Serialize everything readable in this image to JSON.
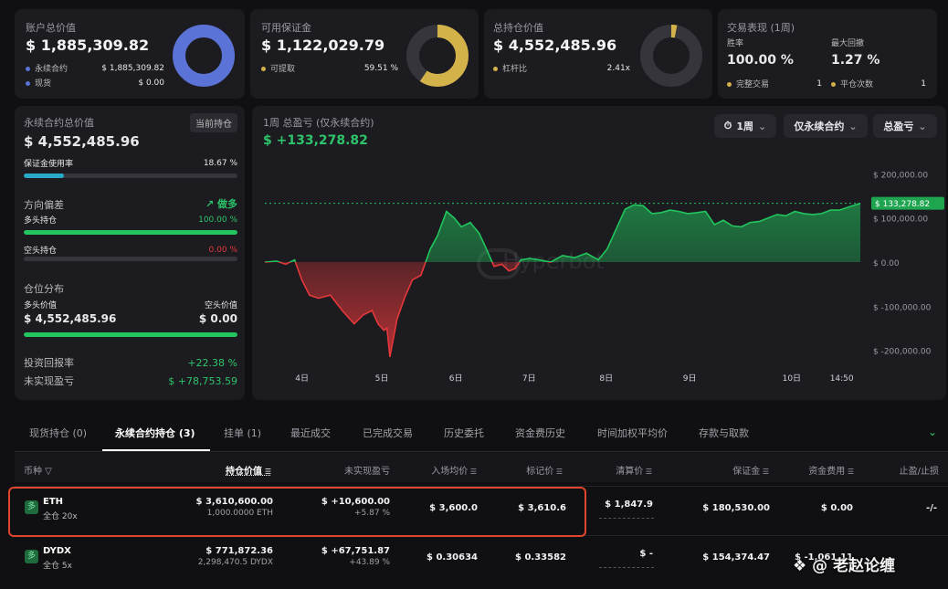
{
  "summary": {
    "account": {
      "title": "账户总价值",
      "value": "$ 1,885,309.82",
      "rows": [
        {
          "label": "永续合约",
          "value": "$ 1,885,309.82",
          "color": "#5b73d6"
        },
        {
          "label": "现货",
          "value": "$ 0.00",
          "color": "#5b73d6"
        }
      ],
      "donut_fraction": 1.0,
      "donut_color": "#5b73d6"
    },
    "margin": {
      "title": "可用保证金",
      "value": "$ 1,122,029.79",
      "rows": [
        {
          "label": "可提取",
          "value": "59.51 %",
          "color": "#d4b24a"
        }
      ],
      "donut_fraction": 0.5951,
      "donut_color": "#d4b24a"
    },
    "position": {
      "title": "总持仓价值",
      "value": "$ 4,552,485.96",
      "rows": [
        {
          "label": "杠杆比",
          "value": "2.41x",
          "color": "#d4b24a"
        }
      ],
      "donut_fraction": 0.03,
      "donut_color": "#d4b24a"
    },
    "performance": {
      "title": "交易表现 (1周)",
      "win_label": "胜率",
      "win_value": "100.00 %",
      "dd_label": "最大回撤",
      "dd_value": "1.27 %",
      "rows": [
        {
          "label": "完整交易",
          "value": "1",
          "color": "#d4b24a"
        },
        {
          "label": "平仓次数",
          "value": "1",
          "color": "#d4b24a"
        }
      ]
    }
  },
  "perp": {
    "title": "永续合约总价值",
    "badge": "当前持仓",
    "value": "$ 4,552,485.96",
    "margin_usage_label": "保证金使用率",
    "margin_usage_value": "18.67 %",
    "margin_usage": 0.1867,
    "bias_label": "方向偏差",
    "bias_value": "做多",
    "long_label": "多头持仓",
    "long_value": "100.00 %",
    "long": 1.0,
    "short_label": "空头持仓",
    "short_value": "0.00 %",
    "short": 0.0,
    "dist_label": "仓位分布",
    "long_val_label": "多头价值",
    "short_val_label": "空头价值",
    "long_val": "$ 4,552,485.96",
    "short_val": "$ 0.00",
    "dist_long": 1.0,
    "roi_label": "投资回报率",
    "roi_value": "+22.38 %",
    "upnl_label": "未实现盈亏",
    "upnl_value": "$ +78,753.59"
  },
  "pnl_panel": {
    "title": "1周 总盈亏 (仅永续合约)",
    "value": "$ +133,278.82",
    "period": "1周",
    "scope": "仅永续合约",
    "metric": "总盈亏",
    "watermark": "Hyperbot"
  },
  "chart_data": {
    "type": "area",
    "ylim": [
      -230000,
      230000
    ],
    "yticks": [
      200000,
      100000,
      0,
      -100000,
      -200000
    ],
    "ytick_labels": [
      "$ 200,000.00",
      "$ 100,000.00",
      "$ 0.00",
      "$ -100,000.00",
      "$ -200,000.00"
    ],
    "xtick_labels": [
      "4日",
      "5日",
      "6日",
      "7日",
      "8日",
      "9日",
      "10日",
      "14:50"
    ],
    "xtick_pos": [
      0.0623,
      0.1963,
      0.3208,
      0.4436,
      0.5732,
      0.7134,
      0.8847,
      0.9688
    ],
    "last_label": "$ 133,278.82",
    "last_value": 133278.82,
    "series": [
      {
        "x": [
          0,
          0.02,
          0.035,
          0.05,
          0.062,
          0.075,
          0.09,
          0.11,
          0.13,
          0.15,
          0.165,
          0.18,
          0.19,
          0.2,
          0.205,
          0.21,
          0.222,
          0.235,
          0.248,
          0.262,
          0.278,
          0.29,
          0.305,
          0.318,
          0.33,
          0.345,
          0.36,
          0.372,
          0.385,
          0.398,
          0.41,
          0.42,
          0.43,
          0.445,
          0.46,
          0.48,
          0.5,
          0.52,
          0.54,
          0.56,
          0.575,
          0.59,
          0.605,
          0.62,
          0.635,
          0.65,
          0.665,
          0.68,
          0.695,
          0.71,
          0.725,
          0.74,
          0.755,
          0.77,
          0.785,
          0.8,
          0.815,
          0.83,
          0.845,
          0.86,
          0.875,
          0.89,
          0.905,
          0.92,
          0.935,
          0.95,
          0.965,
          0.98,
          1.0
        ],
        "y": [
          0,
          2000,
          -5000,
          5000,
          -40000,
          -75000,
          -82000,
          -75000,
          -110000,
          -140000,
          -120000,
          -110000,
          -140000,
          -155000,
          -150000,
          -215000,
          -130000,
          -80000,
          -40000,
          -30000,
          30000,
          60000,
          115000,
          100000,
          80000,
          90000,
          65000,
          30000,
          -10000,
          -5000,
          -20000,
          -15000,
          5000,
          8000,
          5000,
          0,
          15000,
          10000,
          20000,
          5000,
          30000,
          75000,
          120000,
          130000,
          128000,
          110000,
          112000,
          118000,
          115000,
          110000,
          112000,
          115000,
          85000,
          95000,
          82000,
          80000,
          90000,
          92000,
          100000,
          108000,
          105000,
          115000,
          110000,
          108000,
          110000,
          118000,
          118000,
          125000,
          133278.82
        ]
      }
    ]
  },
  "tabs": {
    "items": [
      "现货持仓 (0)",
      "永续合约持仓 (3)",
      "挂单 (1)",
      "最近成交",
      "已完成交易",
      "历史委托",
      "资金费历史",
      "时间加权平均价",
      "存款与取款"
    ],
    "active": 1
  },
  "table": {
    "headers": [
      "币种",
      "持仓价值",
      "未实现盈亏",
      "入场均价",
      "标记价",
      "清算价",
      "保证金",
      "资金费用",
      "止盈/止损"
    ],
    "rows": [
      {
        "coin": "ETH",
        "mode": "全仓 20x",
        "value": "$ 3,610,600.00",
        "size": "1,000.0000 ETH",
        "upnl": "$ +10,600.00",
        "upnl_pct": "+5.87 %",
        "entry": "$ 3,600.0",
        "mark": "$ 3,610.6",
        "liq": "$ 1,847.9",
        "margin": "$ 180,530.00",
        "funding": "$ 0.00",
        "tpsl": "-/-"
      },
      {
        "coin": "DYDX",
        "mode": "全仓 5x",
        "value": "$ 771,872.36",
        "size": "2,298,470.5 DYDX",
        "upnl": "$ +67,751.87",
        "upnl_pct": "+43.89 %",
        "entry": "$ 0.30634",
        "mark": "$ 0.33582",
        "liq": "$ -",
        "margin": "$ 154,374.47",
        "funding": "$ -1,061.11",
        "tpsl": ""
      }
    ]
  },
  "watermark_text": "@ 老赵论缠"
}
